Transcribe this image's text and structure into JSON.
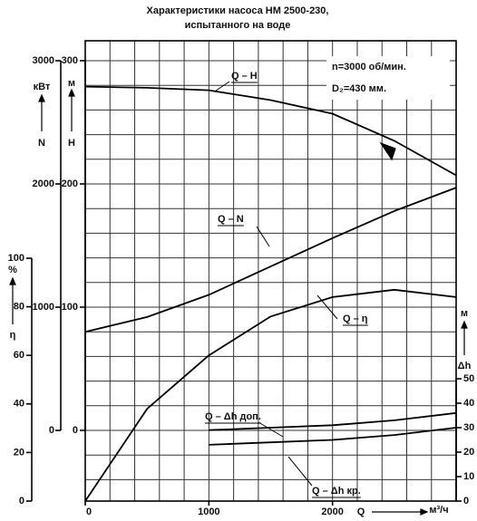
{
  "chart_data": {
    "type": "line",
    "title": "Характеристики насоса НМ 2500-230,",
    "subtitle": "испытанного на воде",
    "annotations": [
      "n=3000 об/мин.",
      "D₂=430 мм."
    ],
    "x_label": "Q",
    "x_unit": "м³/ч",
    "y_label": "H",
    "y_unit": "м",
    "y2_label": "N",
    "y2_unit": "кВт",
    "y3_label": "η",
    "y3_unit": "%",
    "y4_label": "Δh",
    "y4_unit": "м",
    "x": [
      0,
      500,
      1000,
      1500,
      2000,
      2500,
      3000
    ],
    "xlim": [
      0,
      3000
    ],
    "xticks": [
      0,
      1000,
      2000
    ],
    "ylim": [
      0,
      300
    ],
    "yticks": [
      0,
      100,
      200,
      300
    ],
    "y2lim": [
      0,
      3000
    ],
    "y2ticks": [
      0,
      1000,
      2000,
      3000
    ],
    "y3lim": [
      0,
      100
    ],
    "y3ticks": [
      0,
      20,
      40,
      60,
      80,
      100
    ],
    "y4lim": [
      0,
      50
    ],
    "y4ticks": [
      0,
      10,
      20,
      30,
      40,
      50
    ],
    "grid": true,
    "series": [
      {
        "name": "Q – H",
        "color": "#000000",
        "axis": "y",
        "values": [
          279,
          278,
          276,
          268,
          257,
          235,
          207
        ]
      },
      {
        "name": "Q – N",
        "color": "#000000",
        "axis": "y2",
        "values": [
          800,
          920,
          1100,
          1330,
          1560,
          1780,
          1970
        ]
      },
      {
        "name": "Q – η",
        "color": "#000000",
        "axis": "y3",
        "values": [
          0,
          38,
          60,
          76,
          84,
          87,
          84
        ]
      },
      {
        "name": "Q – Δh доп.",
        "color": "#000000",
        "axis": "y4",
        "values": [
          null,
          null,
          29,
          30,
          31,
          33,
          36
        ]
      },
      {
        "name": "Q – Δh кр.",
        "color": "#000000",
        "axis": "y4",
        "values": [
          null,
          null,
          23,
          24,
          25,
          27,
          30
        ]
      }
    ]
  }
}
